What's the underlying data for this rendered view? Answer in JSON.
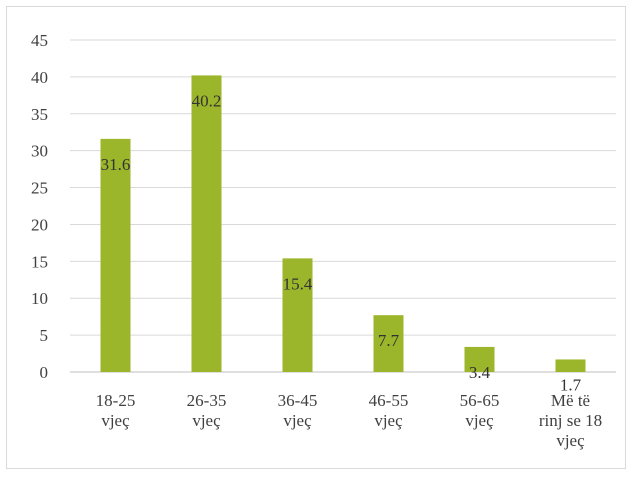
{
  "chart_data": {
    "type": "bar",
    "categories": [
      [
        "18-25",
        "vjeç"
      ],
      [
        "26-35",
        "vjeç"
      ],
      [
        "36-45",
        "vjeç"
      ],
      [
        "46-55",
        "vjeç"
      ],
      [
        "56-65",
        "vjeç"
      ],
      [
        "Më të",
        "rinj se 18",
        "vjeç"
      ]
    ],
    "values": [
      31.6,
      40.2,
      15.4,
      7.7,
      3.4,
      1.7
    ],
    "value_labels": [
      "31.6",
      "40.2",
      "15.4",
      "7.7",
      "3.4",
      "1.7"
    ],
    "title": "",
    "xlabel": "",
    "ylabel": "",
    "ylim": [
      0,
      45
    ],
    "yticks": [
      0,
      5,
      10,
      15,
      20,
      25,
      30,
      35,
      40,
      45
    ],
    "grid": true,
    "legend": "none",
    "colors": {
      "bar": "#9bb62a",
      "grid": "#d9d9d9",
      "axis": "#bfbfbf"
    }
  }
}
